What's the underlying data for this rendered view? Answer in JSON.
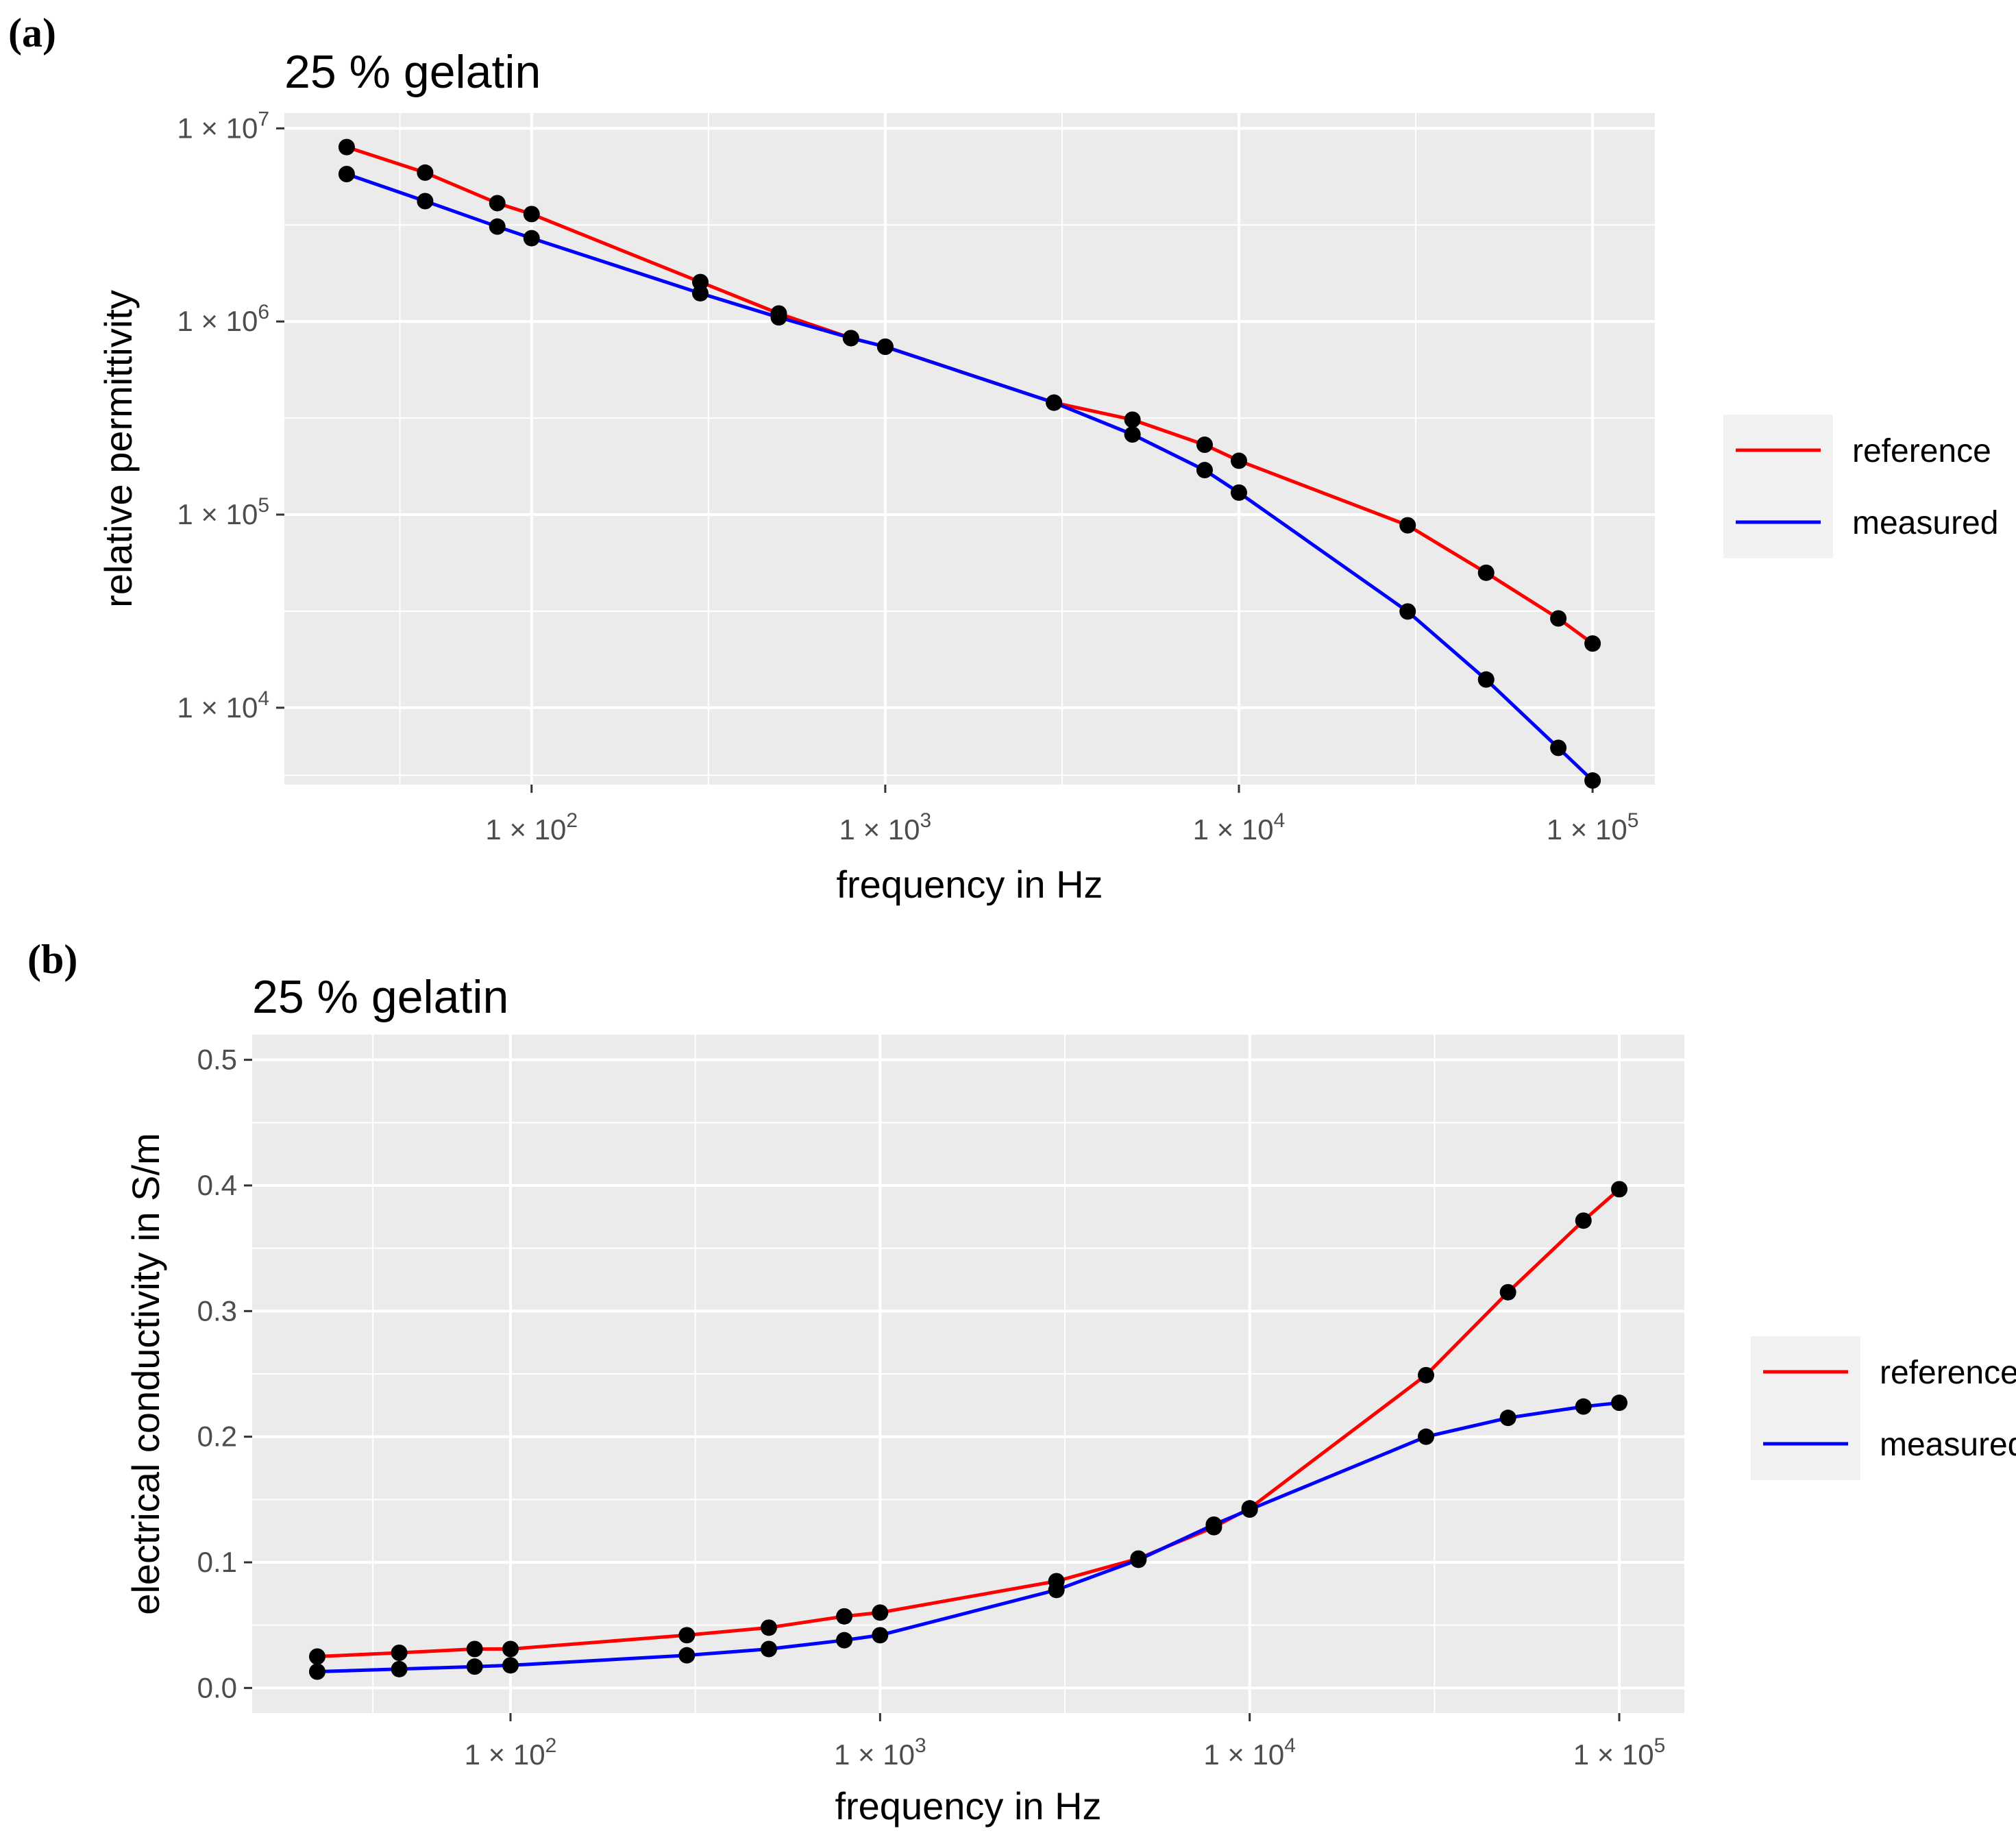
{
  "chart_data": [
    {
      "panel_label": "(a)",
      "type": "line",
      "title": "25 % gelatin",
      "xlabel": "frequency in Hz",
      "ylabel": "relative permittivity",
      "xscale": "log",
      "yscale": "log",
      "xlim": [
        20,
        150000
      ],
      "ylim": [
        4000,
        12000000
      ],
      "x_ticks": [
        {
          "value": 100,
          "base": "1 × 10",
          "exp": "2"
        },
        {
          "value": 1000,
          "base": "1 × 10",
          "exp": "3"
        },
        {
          "value": 10000,
          "base": "1 × 10",
          "exp": "4"
        },
        {
          "value": 100000,
          "base": "1 × 10",
          "exp": "5"
        }
      ],
      "y_ticks": [
        {
          "value": 10000,
          "base": "1 × 10",
          "exp": "4"
        },
        {
          "value": 100000,
          "base": "1 × 10",
          "exp": "5"
        },
        {
          "value": 1000000,
          "base": "1 × 10",
          "exp": "6"
        },
        {
          "value": 10000000,
          "base": "1 × 10",
          "exp": "7"
        }
      ],
      "x": [
        30,
        50,
        80,
        100,
        300,
        500,
        800,
        1000,
        3000,
        5000,
        8000,
        10000,
        30000,
        50000,
        80000,
        100000
      ],
      "series": [
        {
          "name": "reference",
          "color": "#ff0000",
          "values": [
            8000000,
            5900000,
            4100000,
            3600000,
            1600000,
            1100000,
            820000,
            740000,
            380000,
            310000,
            230000,
            190000,
            88000,
            50000,
            29000,
            21500
          ]
        },
        {
          "name": "measured",
          "color": "#0000ff",
          "values": [
            5800000,
            4200000,
            3100000,
            2700000,
            1400000,
            1050000,
            820000,
            740000,
            380000,
            260000,
            170000,
            130000,
            31500,
            14000,
            6200,
            4200
          ]
        }
      ],
      "legend": {
        "position": "right",
        "entries": [
          "reference",
          "measured"
        ]
      }
    },
    {
      "panel_label": "(b)",
      "type": "line",
      "title": "25 % gelatin",
      "xlabel": "frequency in Hz",
      "ylabel": "electrical conductivity in S/m",
      "xscale": "log",
      "yscale": "linear",
      "xlim": [
        20,
        150000
      ],
      "ylim": [
        -0.02,
        0.52
      ],
      "x_ticks": [
        {
          "value": 100,
          "base": "1 × 10",
          "exp": "2"
        },
        {
          "value": 1000,
          "base": "1 × 10",
          "exp": "3"
        },
        {
          "value": 10000,
          "base": "1 × 10",
          "exp": "4"
        },
        {
          "value": 100000,
          "base": "1 × 10",
          "exp": "5"
        }
      ],
      "y_ticks": [
        {
          "value": 0,
          "label": "0.0"
        },
        {
          "value": 0.1,
          "label": "0.1"
        },
        {
          "value": 0.2,
          "label": "0.2"
        },
        {
          "value": 0.3,
          "label": "0.3"
        },
        {
          "value": 0.4,
          "label": "0.4"
        },
        {
          "value": 0.5,
          "label": "0.5"
        }
      ],
      "x": [
        30,
        50,
        80,
        100,
        300,
        500,
        800,
        1000,
        3000,
        5000,
        8000,
        10000,
        30000,
        50000,
        80000,
        100000
      ],
      "series": [
        {
          "name": "reference",
          "color": "#ff0000",
          "values": [
            0.025,
            0.028,
            0.031,
            0.031,
            0.042,
            0.048,
            0.057,
            0.06,
            0.085,
            0.103,
            0.128,
            0.143,
            0.249,
            0.315,
            0.372,
            0.397
          ]
        },
        {
          "name": "measured",
          "color": "#0000ff",
          "values": [
            0.013,
            0.015,
            0.017,
            0.018,
            0.026,
            0.031,
            0.038,
            0.042,
            0.078,
            0.102,
            0.13,
            0.142,
            0.2,
            0.215,
            0.224,
            0.227
          ]
        }
      ],
      "legend": {
        "position": "right",
        "entries": [
          "reference",
          "measured"
        ]
      }
    }
  ]
}
